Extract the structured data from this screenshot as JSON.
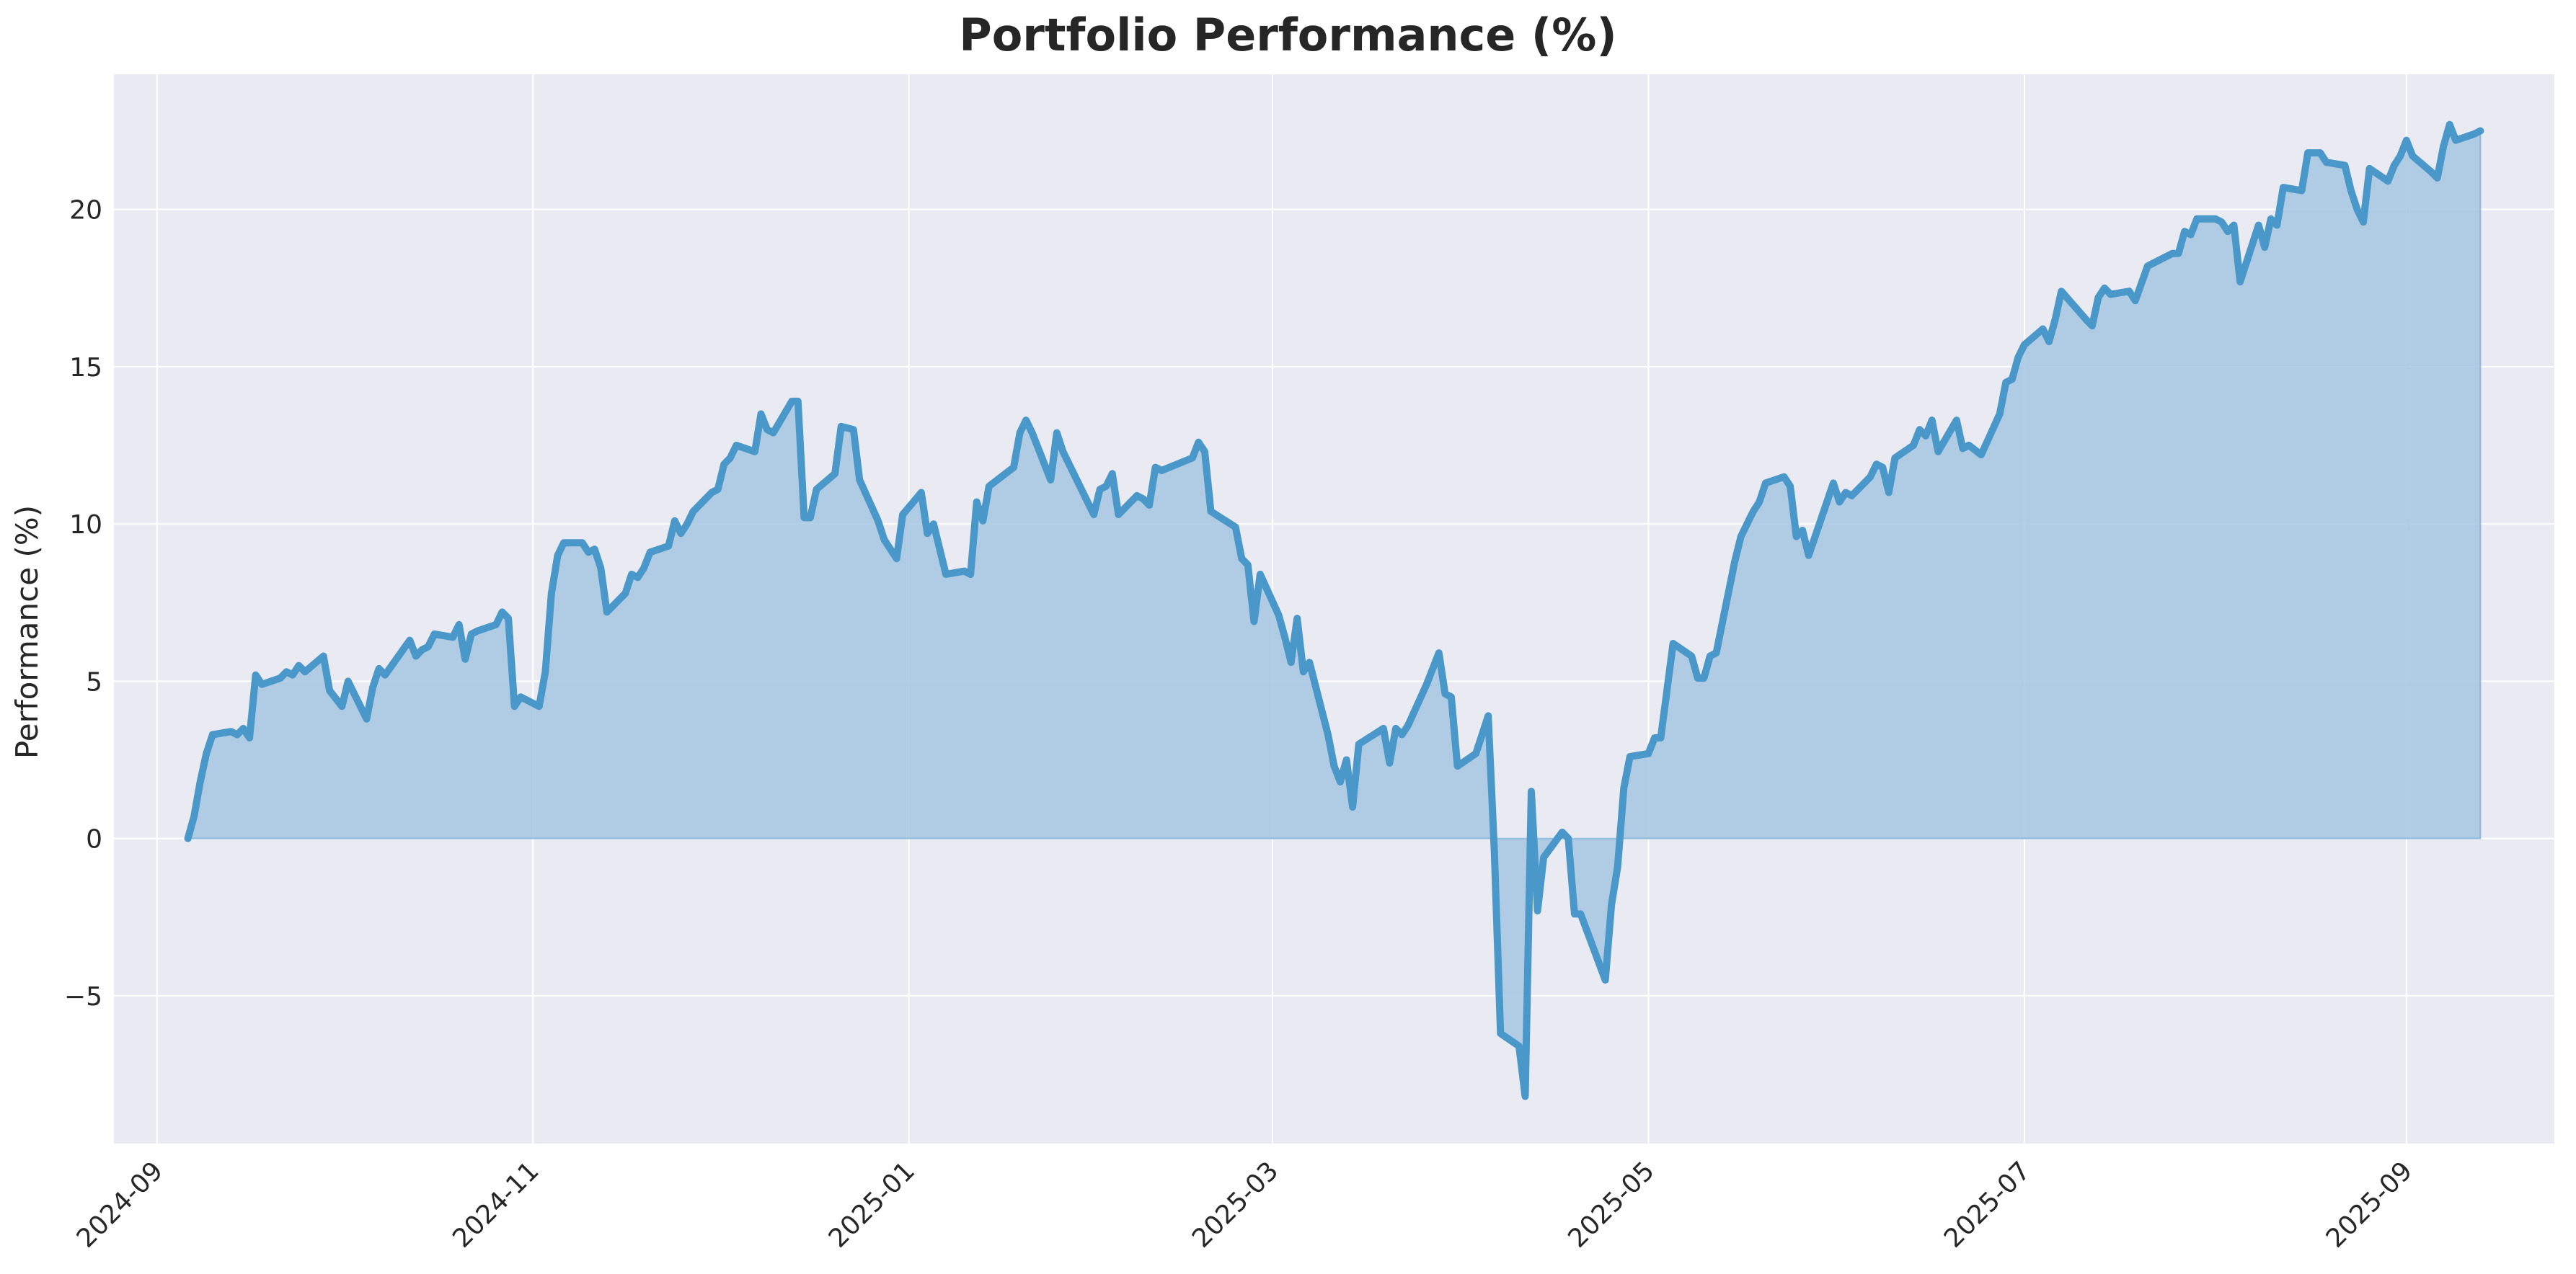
{
  "chart_data": {
    "type": "area",
    "title": "Portfolio Performance (%)",
    "xlabel": "",
    "ylabel": "Performance (%)",
    "xlim": [
      "2024-08-25",
      "2025-09-25"
    ],
    "ylim": [
      -9.7,
      24.3
    ],
    "grid": true,
    "colors": {
      "line": "#4a98ca",
      "fill": "#a6c7e3",
      "background": "#eaeaf2",
      "grid": "#ffffff"
    },
    "x_ticks": [
      "2024-09",
      "2024-11",
      "2025-01",
      "2025-03",
      "2025-05",
      "2025-07",
      "2025-09"
    ],
    "y_ticks": [
      {
        "value": 20,
        "label": "20"
      },
      {
        "value": 15,
        "label": "15"
      },
      {
        "value": 10,
        "label": "10"
      },
      {
        "value": 5,
        "label": "5"
      },
      {
        "value": 0,
        "label": "0"
      },
      {
        "value": -5,
        "label": "−5"
      }
    ],
    "series": [
      {
        "points": [
          [
            "2024-09-06",
            0.0
          ],
          [
            "2024-09-07",
            0.7
          ],
          [
            "2024-09-08",
            1.8
          ],
          [
            "2024-09-09",
            2.7
          ],
          [
            "2024-09-10",
            3.3
          ],
          [
            "2024-09-13",
            3.4
          ],
          [
            "2024-09-14",
            3.3
          ],
          [
            "2024-09-15",
            3.5
          ],
          [
            "2024-09-16",
            3.2
          ],
          [
            "2024-09-17",
            5.2
          ],
          [
            "2024-09-18",
            4.9
          ],
          [
            "2024-09-21",
            5.1
          ],
          [
            "2024-09-22",
            5.3
          ],
          [
            "2024-09-23",
            5.2
          ],
          [
            "2024-09-24",
            5.5
          ],
          [
            "2024-09-25",
            5.3
          ],
          [
            "2024-09-28",
            5.8
          ],
          [
            "2024-09-29",
            4.7
          ],
          [
            "2024-10-01",
            4.2
          ],
          [
            "2024-10-02",
            5.0
          ],
          [
            "2024-10-05",
            3.8
          ],
          [
            "2024-10-06",
            4.8
          ],
          [
            "2024-10-07",
            5.4
          ],
          [
            "2024-10-08",
            5.2
          ],
          [
            "2024-10-12",
            6.3
          ],
          [
            "2024-10-13",
            5.8
          ],
          [
            "2024-10-14",
            6.0
          ],
          [
            "2024-10-15",
            6.1
          ],
          [
            "2024-10-16",
            6.5
          ],
          [
            "2024-10-19",
            6.4
          ],
          [
            "2024-10-20",
            6.8
          ],
          [
            "2024-10-21",
            5.7
          ],
          [
            "2024-10-22",
            6.5
          ],
          [
            "2024-10-23",
            6.6
          ],
          [
            "2024-10-26",
            6.8
          ],
          [
            "2024-10-27",
            7.2
          ],
          [
            "2024-10-28",
            7.0
          ],
          [
            "2024-10-29",
            4.2
          ],
          [
            "2024-10-30",
            4.5
          ],
          [
            "2024-11-02",
            4.2
          ],
          [
            "2024-11-03",
            5.3
          ],
          [
            "2024-11-04",
            7.8
          ],
          [
            "2024-11-05",
            9.0
          ],
          [
            "2024-11-06",
            9.4
          ],
          [
            "2024-11-09",
            9.4
          ],
          [
            "2024-11-10",
            9.1
          ],
          [
            "2024-11-11",
            9.2
          ],
          [
            "2024-11-12",
            8.6
          ],
          [
            "2024-11-13",
            7.2
          ],
          [
            "2024-11-16",
            7.8
          ],
          [
            "2024-11-17",
            8.4
          ],
          [
            "2024-11-18",
            8.3
          ],
          [
            "2024-11-19",
            8.6
          ],
          [
            "2024-11-20",
            9.1
          ],
          [
            "2024-11-23",
            9.3
          ],
          [
            "2024-11-24",
            10.1
          ],
          [
            "2024-11-25",
            9.7
          ],
          [
            "2024-11-26",
            10.0
          ],
          [
            "2024-11-27",
            10.4
          ],
          [
            "2024-11-30",
            11.0
          ],
          [
            "2024-12-01",
            11.1
          ],
          [
            "2024-12-02",
            11.9
          ],
          [
            "2024-12-03",
            12.1
          ],
          [
            "2024-12-04",
            12.5
          ],
          [
            "2024-12-07",
            12.3
          ],
          [
            "2024-12-08",
            13.5
          ],
          [
            "2024-12-09",
            13.0
          ],
          [
            "2024-12-10",
            12.9
          ],
          [
            "2024-12-13",
            13.9
          ],
          [
            "2024-12-14",
            13.9
          ],
          [
            "2024-12-15",
            10.2
          ],
          [
            "2024-12-16",
            10.2
          ],
          [
            "2024-12-17",
            11.1
          ],
          [
            "2024-12-20",
            11.6
          ],
          [
            "2024-12-21",
            13.1
          ],
          [
            "2024-12-23",
            13.0
          ],
          [
            "2024-12-24",
            11.4
          ],
          [
            "2024-12-27",
            10.1
          ],
          [
            "2024-12-28",
            9.5
          ],
          [
            "2024-12-30",
            8.9
          ],
          [
            "2024-12-31",
            10.3
          ],
          [
            "2025-01-03",
            11.0
          ],
          [
            "2025-01-04",
            9.7
          ],
          [
            "2025-01-05",
            10.0
          ],
          [
            "2025-01-07",
            8.4
          ],
          [
            "2025-01-10",
            8.5
          ],
          [
            "2025-01-11",
            8.4
          ],
          [
            "2025-01-12",
            10.7
          ],
          [
            "2025-01-13",
            10.1
          ],
          [
            "2025-01-14",
            11.2
          ],
          [
            "2025-01-18",
            11.8
          ],
          [
            "2025-01-19",
            12.9
          ],
          [
            "2025-01-20",
            13.3
          ],
          [
            "2025-01-21",
            12.9
          ],
          [
            "2025-01-24",
            11.4
          ],
          [
            "2025-01-25",
            12.9
          ],
          [
            "2025-01-26",
            12.3
          ],
          [
            "2025-01-27",
            11.9
          ],
          [
            "2025-01-31",
            10.3
          ],
          [
            "2025-02-01",
            11.1
          ],
          [
            "2025-02-02",
            11.2
          ],
          [
            "2025-02-03",
            11.6
          ],
          [
            "2025-02-04",
            10.3
          ],
          [
            "2025-02-07",
            10.9
          ],
          [
            "2025-02-08",
            10.8
          ],
          [
            "2025-02-09",
            10.6
          ],
          [
            "2025-02-10",
            11.8
          ],
          [
            "2025-02-11",
            11.7
          ],
          [
            "2025-02-16",
            12.1
          ],
          [
            "2025-02-17",
            12.6
          ],
          [
            "2025-02-18",
            12.3
          ],
          [
            "2025-02-19",
            10.4
          ],
          [
            "2025-02-23",
            9.9
          ],
          [
            "2025-02-24",
            8.9
          ],
          [
            "2025-02-25",
            8.7
          ],
          [
            "2025-02-26",
            6.9
          ],
          [
            "2025-02-27",
            8.4
          ],
          [
            "2025-03-02",
            7.1
          ],
          [
            "2025-03-03",
            6.4
          ],
          [
            "2025-03-04",
            5.6
          ],
          [
            "2025-03-05",
            7.0
          ],
          [
            "2025-03-06",
            5.3
          ],
          [
            "2025-03-07",
            5.6
          ],
          [
            "2025-03-10",
            3.3
          ],
          [
            "2025-03-11",
            2.3
          ],
          [
            "2025-03-12",
            1.8
          ],
          [
            "2025-03-13",
            2.5
          ],
          [
            "2025-03-14",
            1.0
          ],
          [
            "2025-03-15",
            3.0
          ],
          [
            "2025-03-19",
            3.5
          ],
          [
            "2025-03-20",
            2.4
          ],
          [
            "2025-03-21",
            3.5
          ],
          [
            "2025-03-22",
            3.3
          ],
          [
            "2025-03-23",
            3.6
          ],
          [
            "2025-03-26",
            4.9
          ],
          [
            "2025-03-28",
            5.9
          ],
          [
            "2025-03-29",
            4.6
          ],
          [
            "2025-03-30",
            4.5
          ],
          [
            "2025-03-31",
            2.3
          ],
          [
            "2025-04-03",
            2.7
          ],
          [
            "2025-04-05",
            3.9
          ],
          [
            "2025-04-06",
            -0.4
          ],
          [
            "2025-04-07",
            -6.2
          ],
          [
            "2025-04-10",
            -6.6
          ],
          [
            "2025-04-11",
            -8.2
          ],
          [
            "2025-04-12",
            1.5
          ],
          [
            "2025-04-13",
            -2.3
          ],
          [
            "2025-04-14",
            -0.6
          ],
          [
            "2025-04-17",
            0.2
          ],
          [
            "2025-04-18",
            0.0
          ],
          [
            "2025-04-19",
            -2.4
          ],
          [
            "2025-04-20",
            -2.4
          ],
          [
            "2025-04-24",
            -4.5
          ],
          [
            "2025-04-25",
            -2.1
          ],
          [
            "2025-04-26",
            -0.9
          ],
          [
            "2025-04-27",
            1.6
          ],
          [
            "2025-04-28",
            2.6
          ],
          [
            "2025-05-01",
            2.7
          ],
          [
            "2025-05-02",
            3.2
          ],
          [
            "2025-05-03",
            3.2
          ],
          [
            "2025-05-04",
            4.7
          ],
          [
            "2025-05-05",
            6.2
          ],
          [
            "2025-05-08",
            5.8
          ],
          [
            "2025-05-09",
            5.1
          ],
          [
            "2025-05-10",
            5.1
          ],
          [
            "2025-05-11",
            5.8
          ],
          [
            "2025-05-12",
            5.9
          ],
          [
            "2025-05-15",
            8.8
          ],
          [
            "2025-05-16",
            9.6
          ],
          [
            "2025-05-17",
            10.0
          ],
          [
            "2025-05-18",
            10.4
          ],
          [
            "2025-05-19",
            10.7
          ],
          [
            "2025-05-20",
            11.3
          ],
          [
            "2025-05-23",
            11.5
          ],
          [
            "2025-05-24",
            11.2
          ],
          [
            "2025-05-25",
            9.6
          ],
          [
            "2025-05-26",
            9.8
          ],
          [
            "2025-05-27",
            9.0
          ],
          [
            "2025-05-31",
            11.3
          ],
          [
            "2025-06-01",
            10.7
          ],
          [
            "2025-06-02",
            11.0
          ],
          [
            "2025-06-03",
            10.9
          ],
          [
            "2025-06-06",
            11.5
          ],
          [
            "2025-06-07",
            11.9
          ],
          [
            "2025-06-08",
            11.8
          ],
          [
            "2025-06-09",
            11.0
          ],
          [
            "2025-06-10",
            12.1
          ],
          [
            "2025-06-13",
            12.5
          ],
          [
            "2025-06-14",
            13.0
          ],
          [
            "2025-06-15",
            12.8
          ],
          [
            "2025-06-16",
            13.3
          ],
          [
            "2025-06-17",
            12.3
          ],
          [
            "2025-06-20",
            13.3
          ],
          [
            "2025-06-21",
            12.4
          ],
          [
            "2025-06-22",
            12.5
          ],
          [
            "2025-06-24",
            12.2
          ],
          [
            "2025-06-27",
            13.5
          ],
          [
            "2025-06-28",
            14.5
          ],
          [
            "2025-06-29",
            14.6
          ],
          [
            "2025-06-30",
            15.3
          ],
          [
            "2025-07-01",
            15.7
          ],
          [
            "2025-07-04",
            16.2
          ],
          [
            "2025-07-05",
            15.8
          ],
          [
            "2025-07-06",
            16.5
          ],
          [
            "2025-07-07",
            17.4
          ],
          [
            "2025-07-11",
            16.5
          ],
          [
            "2025-07-12",
            16.3
          ],
          [
            "2025-07-13",
            17.2
          ],
          [
            "2025-07-14",
            17.5
          ],
          [
            "2025-07-15",
            17.3
          ],
          [
            "2025-07-18",
            17.4
          ],
          [
            "2025-07-19",
            17.1
          ],
          [
            "2025-07-21",
            18.2
          ],
          [
            "2025-07-22",
            18.3
          ],
          [
            "2025-07-25",
            18.6
          ],
          [
            "2025-07-26",
            18.6
          ],
          [
            "2025-07-27",
            19.3
          ],
          [
            "2025-07-28",
            19.2
          ],
          [
            "2025-07-29",
            19.7
          ],
          [
            "2025-08-01",
            19.7
          ],
          [
            "2025-08-02",
            19.6
          ],
          [
            "2025-08-03",
            19.3
          ],
          [
            "2025-08-04",
            19.5
          ],
          [
            "2025-08-05",
            17.7
          ],
          [
            "2025-08-08",
            19.5
          ],
          [
            "2025-08-09",
            18.8
          ],
          [
            "2025-08-10",
            19.7
          ],
          [
            "2025-08-11",
            19.5
          ],
          [
            "2025-08-12",
            20.7
          ],
          [
            "2025-08-15",
            20.6
          ],
          [
            "2025-08-16",
            21.8
          ],
          [
            "2025-08-18",
            21.8
          ],
          [
            "2025-08-19",
            21.5
          ],
          [
            "2025-08-22",
            21.4
          ],
          [
            "2025-08-23",
            20.6
          ],
          [
            "2025-08-24",
            20.0
          ],
          [
            "2025-08-25",
            19.6
          ],
          [
            "2025-08-26",
            21.3
          ],
          [
            "2025-08-29",
            20.9
          ],
          [
            "2025-08-30",
            21.4
          ],
          [
            "2025-08-31",
            21.7
          ],
          [
            "2025-09-01",
            22.2
          ],
          [
            "2025-09-02",
            21.7
          ],
          [
            "2025-09-05",
            21.2
          ],
          [
            "2025-09-06",
            21.0
          ],
          [
            "2025-09-07",
            22.0
          ],
          [
            "2025-09-08",
            22.7
          ],
          [
            "2025-09-09",
            22.2
          ],
          [
            "2025-09-12",
            22.4
          ],
          [
            "2025-09-13",
            22.5
          ]
        ]
      }
    ]
  }
}
